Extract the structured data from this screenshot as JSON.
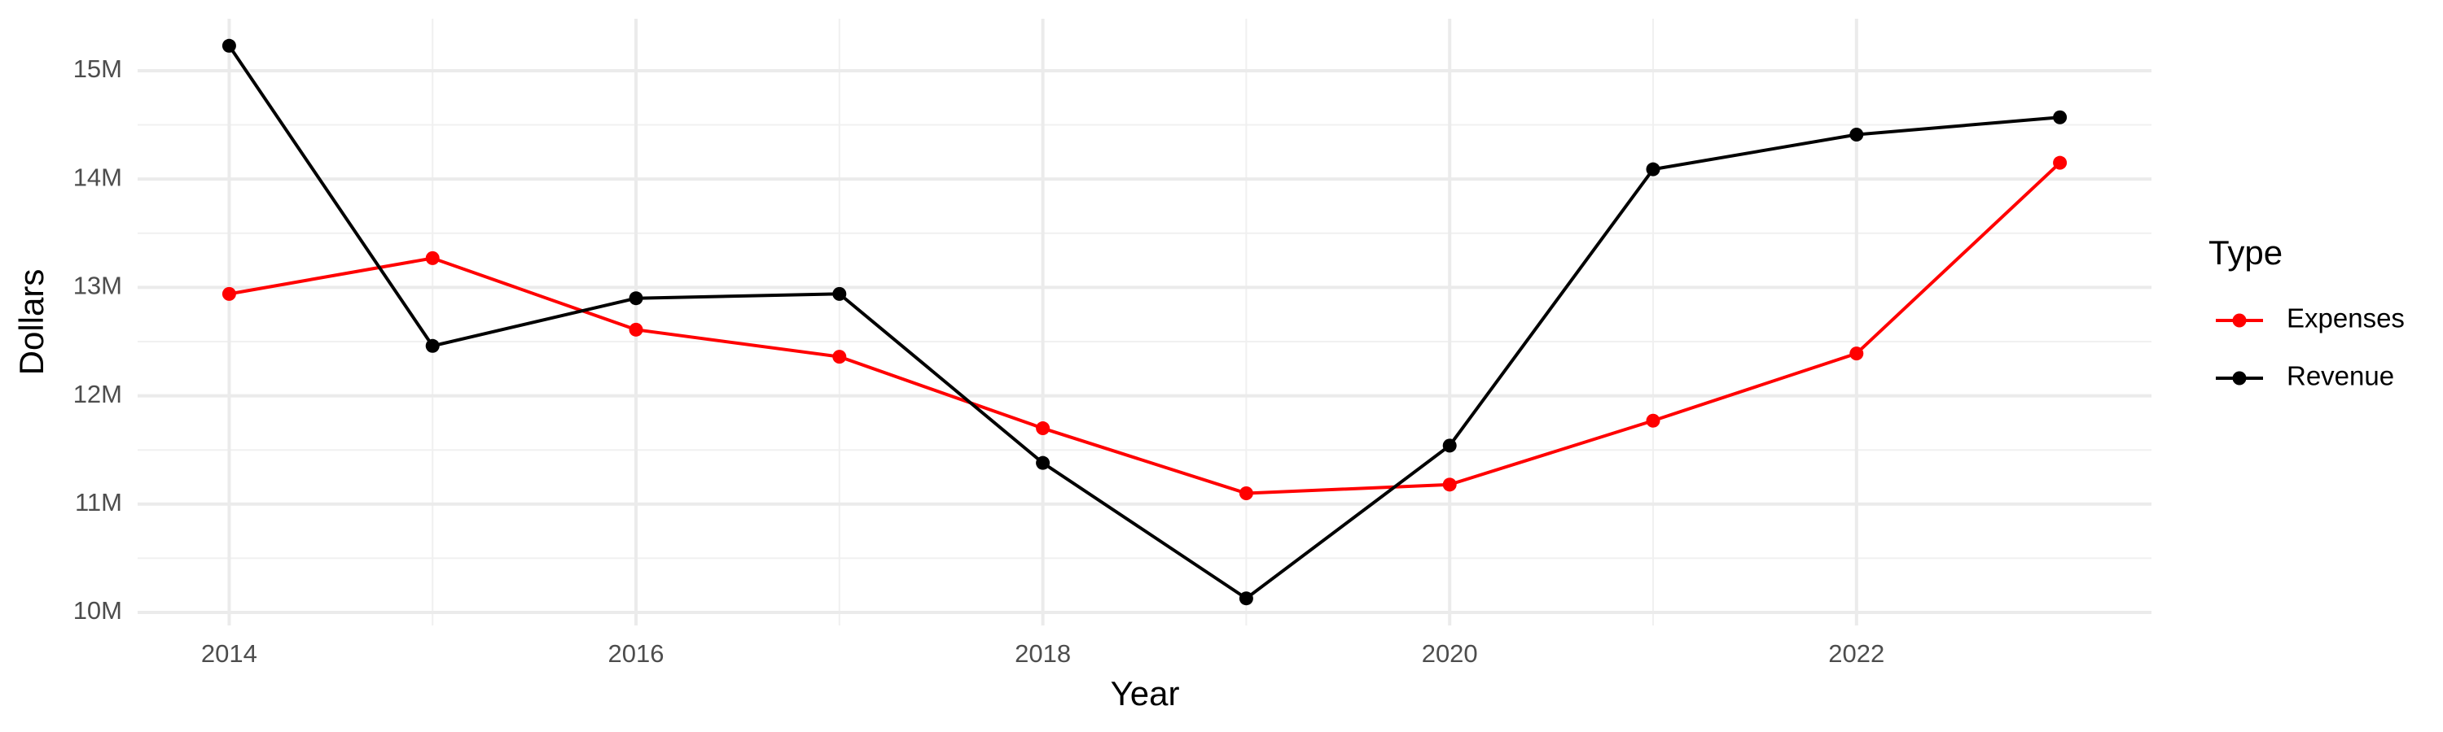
{
  "chart_data": {
    "type": "line",
    "x_label": "Year",
    "y_label": "Dollars",
    "legend_title": "Type",
    "x": [
      2014,
      2015,
      2016,
      2017,
      2018,
      2019,
      2020,
      2021,
      2022,
      2023
    ],
    "series": [
      {
        "name": "Expenses",
        "color": "#ff0000",
        "values": [
          12940000,
          13270000,
          12610000,
          12360000,
          11700000,
          11100000,
          11180000,
          11770000,
          12390000,
          14150000
        ]
      },
      {
        "name": "Revenue",
        "color": "#000000",
        "values": [
          15230000,
          12460000,
          12900000,
          12940000,
          11380000,
          10130000,
          11540000,
          14090000,
          14410000,
          14570000
        ]
      }
    ],
    "xlim": [
      2013.55,
      2023.45
    ],
    "xticks": [
      2014,
      2016,
      2018,
      2020,
      2022
    ],
    "ylim": [
      9880000,
      15480000
    ],
    "yticks": [
      {
        "value": 10000000,
        "label": "10M"
      },
      {
        "value": 11000000,
        "label": "11M"
      },
      {
        "value": 12000000,
        "label": "12M"
      },
      {
        "value": 13000000,
        "label": "13M"
      },
      {
        "value": 14000000,
        "label": "14M"
      },
      {
        "value": 15000000,
        "label": "15M"
      }
    ],
    "grid": true,
    "legend_position": "right"
  }
}
